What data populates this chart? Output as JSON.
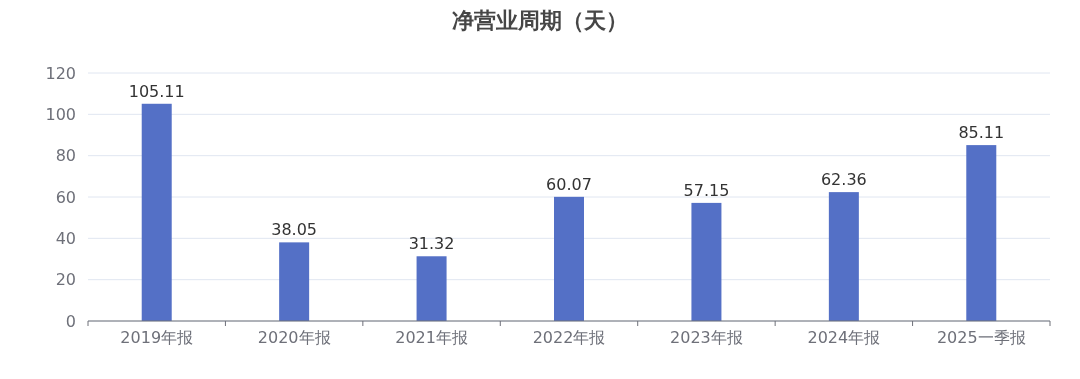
{
  "chart_data": {
    "type": "bar",
    "title": "净营业周期（天）",
    "categories": [
      "2019年报",
      "2020年报",
      "2021年报",
      "2022年报",
      "2023年报",
      "2024年报",
      "2025一季报"
    ],
    "values": [
      105.11,
      38.05,
      31.32,
      60.07,
      57.15,
      62.36,
      85.11
    ],
    "color": "#5470c6",
    "ylim": [
      0,
      120
    ],
    "yticks": [
      0,
      20,
      40,
      60,
      80,
      100,
      120
    ],
    "grid": "y",
    "data_labels": true
  }
}
